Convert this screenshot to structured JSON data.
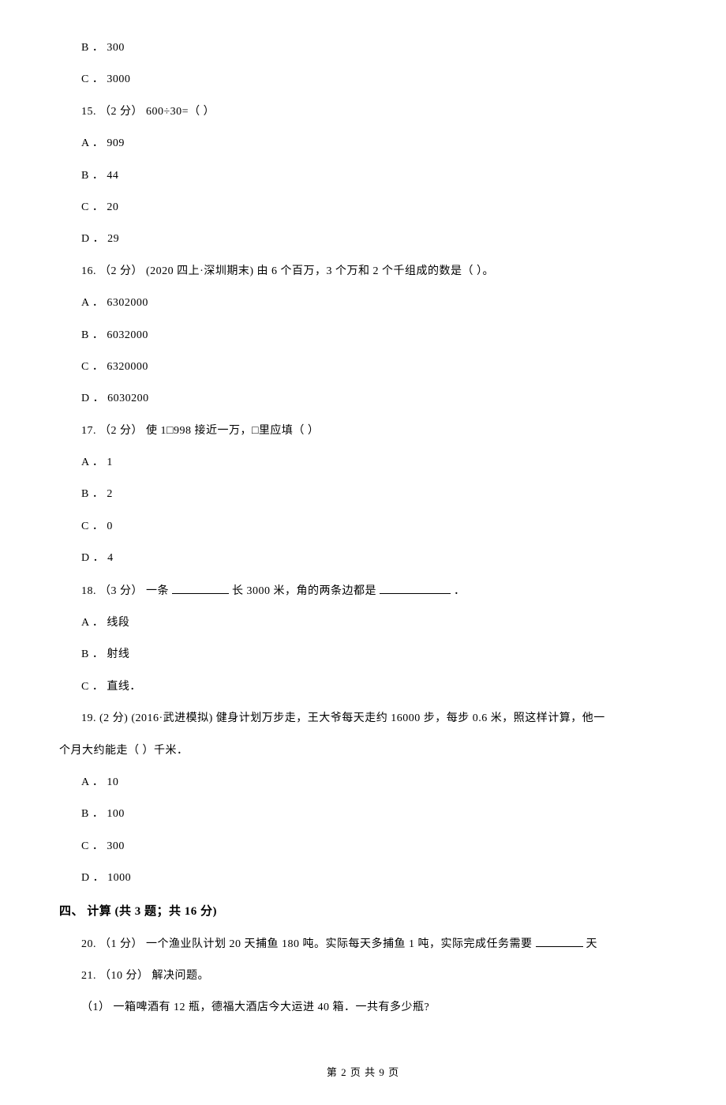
{
  "font": {
    "family": "SimSun",
    "size_pt": 10.5,
    "color": "#000000"
  },
  "background_color": "#ffffff",
  "lines": {
    "p14b": "B ． 300",
    "p14c": "C ． 3000",
    "q15_stem": "15.  （2 分）    600÷30=（     ）",
    "q15a": "A ．   909",
    "q15b": "B ． 44",
    "q15c": "C ． 20",
    "q15d": "D ． 29",
    "q16_stem": "16.  （2 分）  (2020 四上·深圳期末)  由 6 个百万，3 个万和 2 个千组成的数是（     ）。",
    "q16a": "A ． 6302000",
    "q16b": "B ． 6032000",
    "q16c": "C ． 6320000",
    "q16d": "D ． 6030200",
    "q17_stem": "17.  （2 分）  使 1□998 接近一万，□里应填（     ）",
    "q17a": "A ． 1",
    "q17b": "B ． 2",
    "q17c": "C ． 0",
    "q17d": "D ． 4",
    "q18_stem_a": "18.  （3 分）  一条",
    "q18_stem_b": "长 3000 米，角的两条边都是",
    "q18_stem_c": "．",
    "q18a": "A ． 线段",
    "q18b": "B ． 射线",
    "q18c": "C ． 直线．",
    "q19_stem_a": "19.  (2 分)  (2016·武进模拟)  健身计划万步走，王大爷每天走约 16000 步，每步 0.6 米，照这样计算，他一",
    "q19_stem_b": "个月大约能走（     ）千米．",
    "q19a": "A ． 10",
    "q19b": "B ． 100",
    "q19c": "C ． 300",
    "q19d": "D ． 1000",
    "section4": "四、 计算  (共 3 题；共 16 分)",
    "q20_stem_a": "20.  （1 分）  一个渔业队计划 20 天捕鱼 180 吨。实际每天多捕鱼 1 吨，实际完成任务需要",
    "q20_stem_b": "天",
    "q21_stem": "21.  （10 分）  解决问题。",
    "q21_1": "（1）  一箱啤酒有 12 瓶，德福大酒店今大运进 40 箱．一共有多少瓶?"
  },
  "footer": {
    "text_a": "第 ",
    "page_current": "2",
    "text_b": " 页 共 ",
    "page_total": "9",
    "text_c": " 页"
  }
}
